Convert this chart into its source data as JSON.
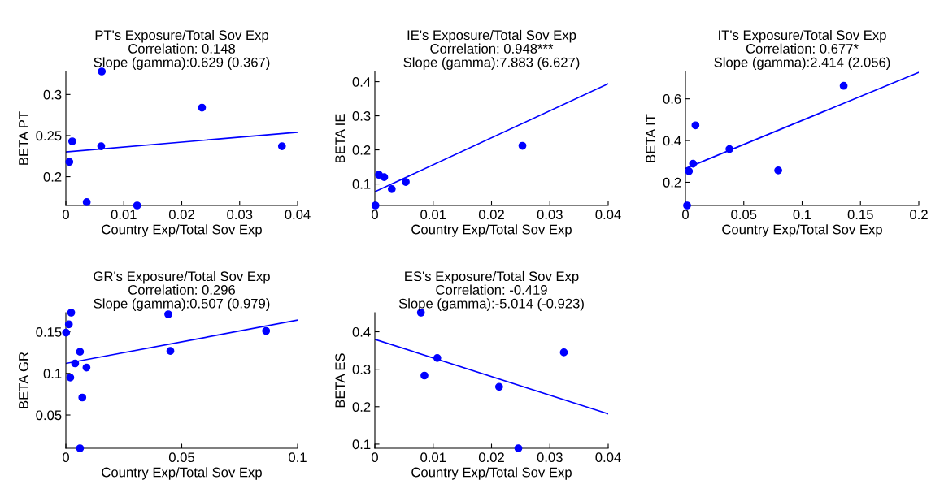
{
  "chart_data": [
    {
      "type": "scatter",
      "title": "PT's Exposure/Total Sov Exp\nCorrelation: 0.148\nSlope (gamma):0.629 (0.367)",
      "xlabel": "Country Exp/Total Sov Exp",
      "ylabel": "BETA PT",
      "xlim": [
        0,
        0.04
      ],
      "ylim": [
        0.165,
        0.328
      ],
      "xticks": [
        0,
        0.01,
        0.02,
        0.03,
        0.04
      ],
      "yticks": [
        0.2,
        0.25,
        0.3
      ],
      "grid": false,
      "series": [
        {
          "color": "#0000ff",
          "marker": "circle",
          "x": [
            0.0006,
            0.0011,
            0.0062,
            0.0061,
            0.0036,
            0.0123,
            0.0235,
            0.0373
          ],
          "values": [
            0.218,
            0.243,
            0.328,
            0.237,
            0.169,
            0.165,
            0.284,
            0.237
          ]
        },
        {
          "type": "line",
          "color": "#0000ff",
          "marker": "none",
          "x": [
            0,
            0.04
          ],
          "values": [
            0.23,
            0.254
          ]
        }
      ]
    },
    {
      "type": "scatter",
      "title": "IE's Exposure/Total Sov Exp\nCorrelation: 0.948***\nSlope (gamma):7.883 (6.627)",
      "xlabel": "Country Exp/Total Sov Exp",
      "ylabel": "BETA IE",
      "xlim": [
        0,
        0.04
      ],
      "ylim": [
        0.037,
        0.43
      ],
      "xticks": [
        0,
        0.01,
        0.02,
        0.03,
        0.04
      ],
      "yticks": [
        0.1,
        0.2,
        0.3,
        0.4
      ],
      "grid": false,
      "series": [
        {
          "color": "#0000ff",
          "marker": "circle",
          "x": [
            0.0001,
            0.0007,
            0.0016,
            0.0029,
            0.0053,
            0.0253
          ],
          "values": [
            0.037,
            0.127,
            0.12,
            0.085,
            0.106,
            0.212
          ]
        },
        {
          "type": "line",
          "color": "#0000ff",
          "marker": "none",
          "x": [
            0,
            0.04
          ],
          "values": [
            0.077,
            0.394
          ]
        }
      ]
    },
    {
      "type": "scatter",
      "title": "IT's Exposure/Total Sov Exp\nCorrelation: 0.677*\nSlope (gamma):2.414 (2.056)",
      "xlabel": "Country Exp/Total Sov Exp",
      "ylabel": "BETA IT",
      "xlim": [
        0,
        0.2
      ],
      "ylim": [
        0.089,
        0.731
      ],
      "xticks": [
        0,
        0.05,
        0.1,
        0.15,
        0.2
      ],
      "yticks": [
        0.2,
        0.4,
        0.6
      ],
      "grid": false,
      "series": [
        {
          "color": "#0000ff",
          "marker": "circle",
          "x": [
            0.0014,
            0.003,
            0.0065,
            0.0086,
            0.0377,
            0.0795,
            0.1356
          ],
          "values": [
            0.089,
            0.253,
            0.289,
            0.473,
            0.359,
            0.257,
            0.662
          ]
        },
        {
          "type": "line",
          "color": "#0000ff",
          "marker": "none",
          "x": [
            0,
            0.2
          ],
          "values": [
            0.266,
            0.727
          ]
        }
      ]
    },
    {
      "type": "scatter",
      "title": "GR's Exposure/Total Sov Exp\nCorrelation: 0.296\nSlope (gamma):0.507 (0.979)",
      "xlabel": "Country Exp/Total Sov Exp",
      "ylabel": "BETA GR",
      "xlim": [
        0,
        0.1
      ],
      "ylim": [
        0.01,
        0.173
      ],
      "xticks": [
        0,
        0.05,
        0.1
      ],
      "yticks": [
        0.05,
        0.1,
        0.15
      ],
      "grid": false,
      "series": [
        {
          "color": "#0000ff",
          "marker": "circle",
          "x": [
            0.0023,
            0.0013,
            0.0001,
            0.0061,
            0.004,
            0.0089,
            0.0019,
            0.0071,
            0.0061,
            0.0442,
            0.0451,
            0.0864
          ],
          "values": [
            0.173,
            0.159,
            0.149,
            0.126,
            0.112,
            0.107,
            0.095,
            0.071,
            0.01,
            0.171,
            0.127,
            0.151
          ]
        },
        {
          "type": "line",
          "color": "#0000ff",
          "marker": "none",
          "x": [
            0,
            0.1
          ],
          "values": [
            0.112,
            0.164
          ]
        }
      ]
    },
    {
      "type": "scatter",
      "title": "ES's Exposure/Total Sov Exp\nCorrelation: -0.419\nSlope (gamma):-5.014 (-0.923)",
      "xlabel": "Country Exp/Total Sov Exp",
      "ylabel": "BETA ES",
      "xlim": [
        0,
        0.04
      ],
      "ylim": [
        0.089,
        0.451
      ],
      "xticks": [
        0,
        0.01,
        0.02,
        0.03,
        0.04
      ],
      "yticks": [
        0.1,
        0.2,
        0.3,
        0.4
      ],
      "grid": false,
      "series": [
        {
          "color": "#0000ff",
          "marker": "circle",
          "x": [
            0.0079,
            0.0085,
            0.0107,
            0.0213,
            0.0246,
            0.0324
          ],
          "values": [
            0.451,
            0.283,
            0.33,
            0.253,
            0.089,
            0.345
          ]
        },
        {
          "type": "line",
          "color": "#0000ff",
          "marker": "none",
          "x": [
            0,
            0.04
          ],
          "values": [
            0.38,
            0.181
          ]
        }
      ]
    }
  ]
}
